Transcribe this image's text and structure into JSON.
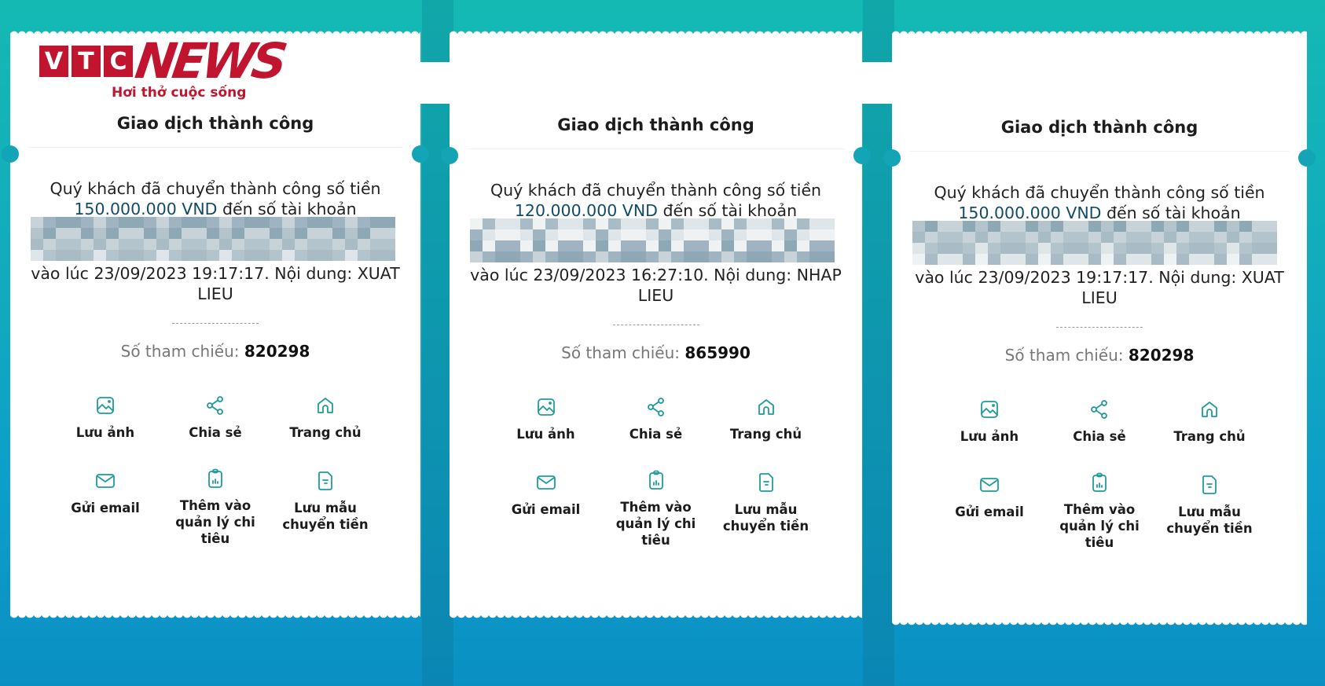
{
  "brand": {
    "logo_letters": [
      "V",
      "T",
      "C"
    ],
    "logo_word": "NEWS",
    "tagline": "Hơi thở cuộc sống",
    "color": "#c1152f"
  },
  "colors": {
    "icon": "#1f9c9a",
    "amount": "#124b67",
    "background": "#12a9bf"
  },
  "receipts": [
    {
      "title": "Giao dịch thành công",
      "line1": "Quý khách đã chuyển thành công số tiền",
      "amount": "150.000.000 VND",
      "line2": " đến số tài khoản",
      "line3": "vào lúc 23/09/2023 19:17:17. Nội dung: XUAT",
      "line4": "LIEU",
      "ref_label": "Số tham chiếu: ",
      "ref_value": "820298",
      "actions": [
        {
          "label": "Lưu ảnh",
          "icon": "image-icon"
        },
        {
          "label": "Chia sẻ",
          "icon": "share-icon"
        },
        {
          "label": "Trang chủ",
          "icon": "home-icon"
        },
        {
          "label": "Gửi email",
          "icon": "mail-icon"
        },
        {
          "label": "Thêm vào quản lý chi tiêu",
          "icon": "clipboard-chart-icon"
        },
        {
          "label": "Lưu mẫu chuyển tiền",
          "icon": "document-icon"
        }
      ]
    },
    {
      "title": "Giao dịch thành công",
      "line1": "Quý khách đã chuyển thành công số tiền",
      "amount": "120.000.000 VND",
      "line2": " đến số tài khoản",
      "line3": "vào lúc 23/09/2023 16:27:10. Nội dung: NHAP",
      "line4": "LIEU",
      "ref_label": "Số tham chiếu: ",
      "ref_value": "865990",
      "actions": [
        {
          "label": "Lưu ảnh",
          "icon": "image-icon"
        },
        {
          "label": "Chia sẻ",
          "icon": "share-icon"
        },
        {
          "label": "Trang chủ",
          "icon": "home-icon"
        },
        {
          "label": "Gửi email",
          "icon": "mail-icon"
        },
        {
          "label": "Thêm vào quản lý chi tiêu",
          "icon": "clipboard-chart-icon"
        },
        {
          "label": "Lưu mẫu chuyển tiền",
          "icon": "document-icon"
        }
      ]
    },
    {
      "title": "Giao dịch thành công",
      "line1": "Quý khách đã chuyển thành công số tiền",
      "amount": "150.000.000 VND",
      "line2": " đến số tài khoản",
      "line3": "vào lúc 23/09/2023 19:17:17. Nội dung: XUAT",
      "line4": "LIEU",
      "ref_label": "Số tham chiếu: ",
      "ref_value": "820298",
      "actions": [
        {
          "label": "Lưu ảnh",
          "icon": "image-icon"
        },
        {
          "label": "Chia sẻ",
          "icon": "share-icon"
        },
        {
          "label": "Trang chủ",
          "icon": "home-icon"
        },
        {
          "label": "Gửi email",
          "icon": "mail-icon"
        },
        {
          "label": "Thêm vào quản lý chi tiêu",
          "icon": "clipboard-chart-icon"
        },
        {
          "label": "Lưu mẫu chuyển tiền",
          "icon": "document-icon"
        }
      ]
    }
  ]
}
